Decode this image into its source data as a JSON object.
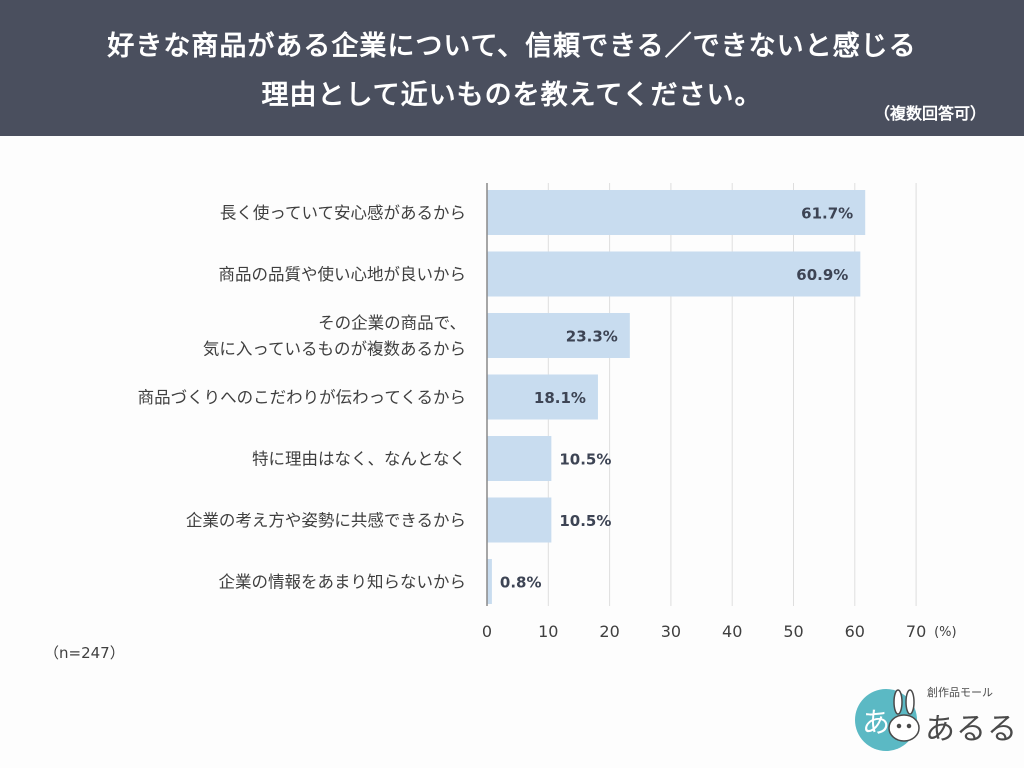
{
  "header": {
    "title_line1": "好きな商品がある企業について、信頼できる／できないと感じる",
    "title_line2": "理由として近いものを教えてください。",
    "subtitle": "（複数回答可）"
  },
  "chart_data": {
    "type": "bar",
    "orientation": "horizontal",
    "categories": [
      "長く使っていて安心感があるから",
      "商品の品質や使い心地が良いから",
      "その企業の商品で、\n気に入っているものが複数あるから",
      "商品づくりへのこだわりが伝わってくるから",
      "特に理由はなく、なんとなく",
      "企業の考え方や姿勢に共感できるから",
      "企業の情報をあまり知らないから"
    ],
    "values": [
      61.7,
      60.9,
      23.3,
      18.1,
      10.5,
      10.5,
      0.8
    ],
    "value_labels": [
      "61.7%",
      "60.9%",
      "23.3%",
      "18.1%",
      "10.5%",
      "10.5%",
      "0.8%"
    ],
    "xlim": [
      0,
      70
    ],
    "xticks": [
      0,
      10,
      20,
      30,
      40,
      50,
      60,
      70
    ],
    "xunit": "(%)",
    "grid": true,
    "legend": "none",
    "bar_color": "#c8dcef",
    "sample_note": "（n=247）"
  },
  "logo": {
    "caption": "創作品モール",
    "name": "あるる",
    "circle_color": "#5bb9c4"
  }
}
